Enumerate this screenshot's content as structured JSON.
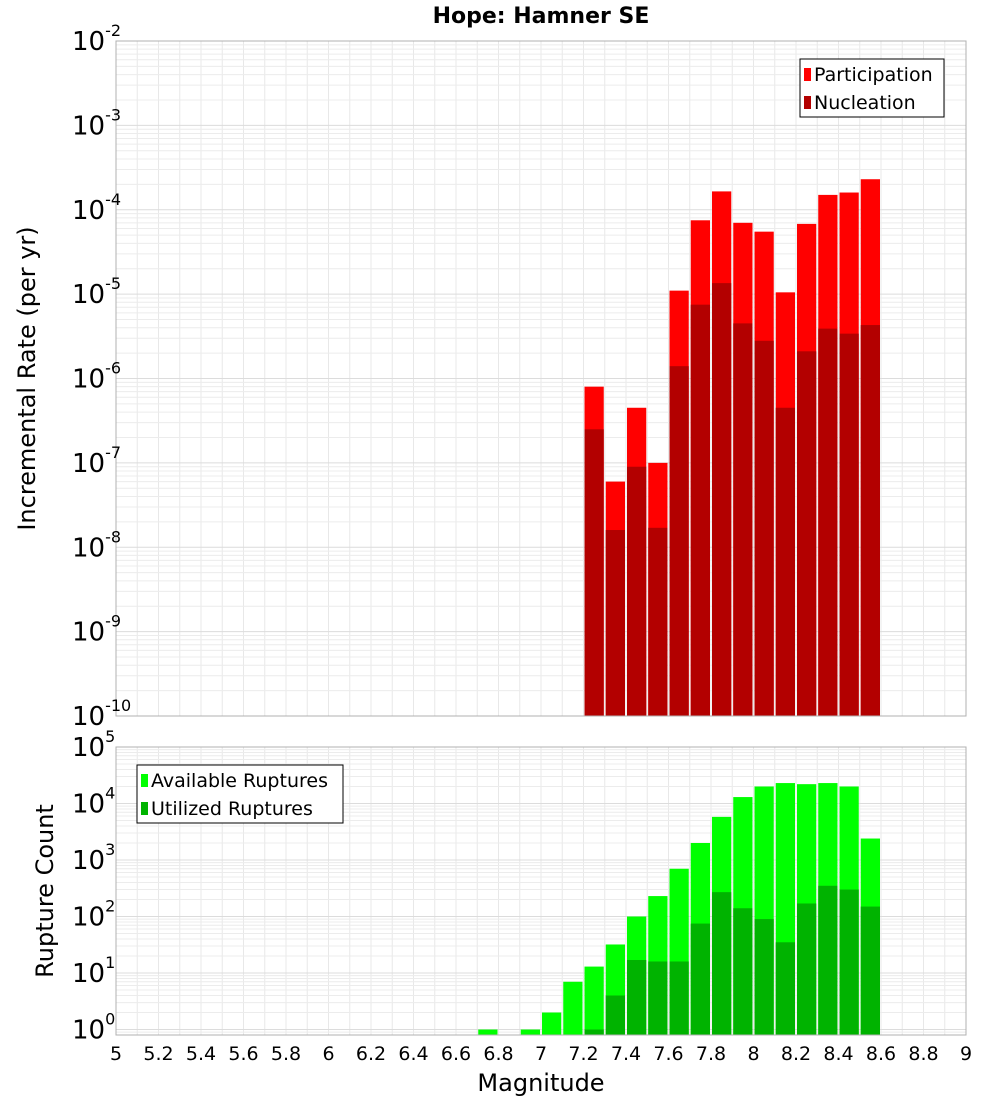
{
  "chart_data": [
    {
      "type": "bar",
      "title": "Hope: Hamner SE",
      "xlabel": "",
      "ylabel": "Incremental Rate (per yr)",
      "yscale": "log",
      "xlim": [
        5,
        9
      ],
      "ylim": [
        1e-10,
        0.01
      ],
      "y_tick_labels": [
        {
          "base": "10",
          "exp": "-10"
        },
        {
          "base": "10",
          "exp": "-9"
        },
        {
          "base": "10",
          "exp": "-8"
        },
        {
          "base": "10",
          "exp": "-7"
        },
        {
          "base": "10",
          "exp": "-6"
        },
        {
          "base": "10",
          "exp": "-5"
        },
        {
          "base": "10",
          "exp": "-4"
        },
        {
          "base": "10",
          "exp": "-3"
        },
        {
          "base": "10",
          "exp": "-2"
        }
      ],
      "grid": true,
      "legend_position": "top-right",
      "bar_width": 0.1,
      "x": [
        7.25,
        7.35,
        7.45,
        7.55,
        7.65,
        7.75,
        7.85,
        7.95,
        8.05,
        8.15,
        8.25,
        8.35,
        8.45,
        8.55
      ],
      "series": [
        {
          "name": "Participation",
          "color": "#ff0000",
          "values": [
            8e-07,
            6e-08,
            4.5e-07,
            1e-07,
            1.1e-05,
            7.5e-05,
            0.000165,
            7e-05,
            5.5e-05,
            1.05e-05,
            6.8e-05,
            0.00015,
            0.00016,
            0.00023
          ]
        },
        {
          "name": "Nucleation",
          "color": "#b30000",
          "values": [
            2.5e-07,
            1.6e-08,
            9e-08,
            1.7e-08,
            1.4e-06,
            7.5e-06,
            1.35e-05,
            4.5e-06,
            2.8e-06,
            4.5e-07,
            2.1e-06,
            3.9e-06,
            3.4e-06,
            4.3e-06
          ]
        }
      ]
    },
    {
      "type": "bar",
      "title": "",
      "xlabel": "Magnitude",
      "ylabel": "Rupture Count",
      "yscale": "log",
      "xlim": [
        5,
        9
      ],
      "ylim": [
        0.8,
        100000
      ],
      "y_tick_labels": [
        {
          "base": "10",
          "exp": "0"
        },
        {
          "base": "10",
          "exp": "1"
        },
        {
          "base": "10",
          "exp": "2"
        },
        {
          "base": "10",
          "exp": "3"
        },
        {
          "base": "10",
          "exp": "4"
        },
        {
          "base": "10",
          "exp": "5"
        }
      ],
      "x_tick_labels": [
        "5",
        "5.2",
        "5.4",
        "5.6",
        "5.8",
        "6",
        "6.2",
        "6.4",
        "6.6",
        "6.8",
        "7",
        "7.2",
        "7.4",
        "7.6",
        "7.8",
        "8",
        "8.2",
        "8.4",
        "8.6",
        "8.8",
        "9"
      ],
      "grid": true,
      "legend_position": "top-left",
      "bar_width": 0.1,
      "x": [
        6.75,
        6.95,
        7.05,
        7.15,
        7.25,
        7.35,
        7.45,
        7.55,
        7.65,
        7.75,
        7.85,
        7.95,
        8.05,
        8.15,
        8.25,
        8.35,
        8.45,
        8.55
      ],
      "series": [
        {
          "name": "Available Ruptures",
          "color": "#00ff00",
          "values": [
            1,
            1,
            2,
            7,
            13,
            32,
            100,
            230,
            700,
            2000,
            5800,
            13000,
            20000,
            23000,
            22000,
            23000,
            20000,
            2400
          ]
        },
        {
          "name": "Utilized Ruptures",
          "color": "#00b300",
          "values": [
            null,
            null,
            null,
            null,
            1,
            4,
            17,
            16,
            16,
            75,
            270,
            140,
            90,
            35,
            170,
            350,
            300,
            150
          ]
        }
      ]
    }
  ]
}
